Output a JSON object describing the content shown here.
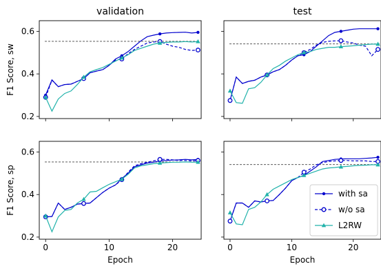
{
  "chart_data": [
    {
      "type": "line",
      "title": "validation",
      "xlabel": "",
      "ylabel": "F1 Score, sw",
      "xlim": [
        -1,
        24.5
      ],
      "ylim": [
        0.19,
        0.65
      ],
      "xticks": [
        0,
        10,
        20
      ],
      "xtick_labels": [
        "",
        "",
        ""
      ],
      "yticks": [
        0.2,
        0.4,
        0.6
      ],
      "ytick_labels": [
        "0.2",
        "0.4",
        "0.6"
      ],
      "baseline": 0.553,
      "legend": false,
      "series": [
        {
          "name": "with sa",
          "color": "#0000cd",
          "dash": "solid",
          "marker": "dot",
          "x": [
            0,
            1,
            2,
            3,
            4,
            5,
            6,
            7,
            8,
            9,
            10,
            11,
            12,
            13,
            14,
            15,
            16,
            17,
            18,
            19,
            20,
            21,
            22,
            23,
            24
          ],
          "y": [
            0.3,
            0.372,
            0.34,
            0.35,
            0.352,
            0.365,
            0.378,
            0.405,
            0.413,
            0.42,
            0.44,
            0.47,
            0.485,
            0.505,
            0.53,
            0.555,
            0.575,
            0.582,
            0.588,
            0.592,
            0.594,
            0.595,
            0.596,
            0.592,
            0.595
          ]
        },
        {
          "name": "w/o sa",
          "color": "#0000cd",
          "dash": "dashed",
          "marker": "circle",
          "x": [
            0,
            1,
            2,
            3,
            4,
            5,
            6,
            7,
            8,
            9,
            10,
            11,
            12,
            13,
            14,
            15,
            16,
            17,
            18,
            19,
            20,
            21,
            22,
            23,
            24
          ],
          "y": [
            0.29,
            0.37,
            0.34,
            0.35,
            0.352,
            0.365,
            0.378,
            0.405,
            0.413,
            0.42,
            0.44,
            0.465,
            0.47,
            0.495,
            0.515,
            0.53,
            0.545,
            0.55,
            0.552,
            0.54,
            0.53,
            0.525,
            0.515,
            0.51,
            0.512
          ]
        },
        {
          "name": "L2RW",
          "color": "#20b2aa",
          "dash": "solid",
          "marker": "triangle",
          "x": [
            0,
            1,
            2,
            3,
            4,
            5,
            6,
            7,
            8,
            9,
            10,
            11,
            12,
            13,
            14,
            15,
            16,
            17,
            18,
            19,
            20,
            21,
            22,
            23,
            24
          ],
          "y": [
            0.29,
            0.225,
            0.282,
            0.308,
            0.32,
            0.35,
            0.385,
            0.41,
            0.42,
            0.43,
            0.445,
            0.46,
            0.475,
            0.49,
            0.51,
            0.52,
            0.53,
            0.54,
            0.545,
            0.548,
            0.55,
            0.55,
            0.552,
            0.55,
            0.552
          ]
        }
      ]
    },
    {
      "type": "line",
      "title": "test",
      "xlabel": "",
      "ylabel": "",
      "xlim": [
        -1,
        24.5
      ],
      "ylim": [
        0.19,
        0.65
      ],
      "xticks": [
        0,
        10,
        20
      ],
      "xtick_labels": [
        "",
        "",
        ""
      ],
      "yticks": [
        0.2,
        0.4,
        0.6
      ],
      "ytick_labels": [
        "",
        "",
        ""
      ],
      "baseline": 0.541,
      "legend": false,
      "series": [
        {
          "name": "with sa",
          "color": "#0000cd",
          "dash": "solid",
          "marker": "dot",
          "x": [
            0,
            1,
            2,
            3,
            4,
            5,
            6,
            7,
            8,
            9,
            10,
            11,
            12,
            13,
            14,
            15,
            16,
            17,
            18,
            19,
            20,
            21,
            22,
            23,
            24
          ],
          "y": [
            0.275,
            0.385,
            0.355,
            0.365,
            0.37,
            0.385,
            0.395,
            0.41,
            0.42,
            0.44,
            0.465,
            0.485,
            0.49,
            0.505,
            0.53,
            0.555,
            0.58,
            0.595,
            0.6,
            0.605,
            0.61,
            0.612,
            0.612,
            0.612,
            0.612
          ]
        },
        {
          "name": "w/o sa",
          "color": "#0000cd",
          "dash": "dashed",
          "marker": "circle",
          "x": [
            0,
            1,
            2,
            3,
            4,
            5,
            6,
            7,
            8,
            9,
            10,
            11,
            12,
            13,
            14,
            15,
            16,
            17,
            18,
            19,
            20,
            21,
            22,
            23,
            24
          ],
          "y": [
            0.275,
            0.385,
            0.355,
            0.365,
            0.37,
            0.385,
            0.395,
            0.41,
            0.42,
            0.44,
            0.465,
            0.485,
            0.5,
            0.515,
            0.535,
            0.548,
            0.553,
            0.555,
            0.556,
            0.55,
            0.545,
            0.535,
            0.53,
            0.485,
            0.515
          ]
        },
        {
          "name": "L2RW",
          "color": "#20b2aa",
          "dash": "solid",
          "marker": "triangle",
          "x": [
            0,
            1,
            2,
            3,
            4,
            5,
            6,
            7,
            8,
            9,
            10,
            11,
            12,
            13,
            14,
            15,
            16,
            17,
            18,
            19,
            20,
            21,
            22,
            23,
            24
          ],
          "y": [
            0.32,
            0.265,
            0.262,
            0.33,
            0.335,
            0.36,
            0.395,
            0.425,
            0.44,
            0.46,
            0.475,
            0.49,
            0.5,
            0.505,
            0.515,
            0.52,
            0.525,
            0.525,
            0.528,
            0.53,
            0.532,
            0.535,
            0.538,
            0.54,
            0.54
          ]
        }
      ]
    },
    {
      "type": "line",
      "title": "",
      "xlabel": "Epoch",
      "ylabel": "F1 Score, sp",
      "xlim": [
        -1,
        24.5
      ],
      "ylim": [
        0.19,
        0.65
      ],
      "xticks": [
        0,
        10,
        20
      ],
      "xtick_labels": [
        "0",
        "10",
        "20"
      ],
      "yticks": [
        0.2,
        0.4,
        0.6
      ],
      "ytick_labels": [
        "0.2",
        "0.4",
        "0.6"
      ],
      "baseline": 0.553,
      "legend": false,
      "series": [
        {
          "name": "with sa",
          "color": "#0000cd",
          "dash": "solid",
          "marker": "dot",
          "x": [
            0,
            1,
            2,
            3,
            4,
            5,
            6,
            7,
            8,
            9,
            10,
            11,
            12,
            13,
            14,
            15,
            16,
            17,
            18,
            19,
            20,
            21,
            22,
            23,
            24
          ],
          "y": [
            0.295,
            0.297,
            0.36,
            0.33,
            0.34,
            0.355,
            0.358,
            0.36,
            0.385,
            0.41,
            0.43,
            0.445,
            0.475,
            0.5,
            0.53,
            0.54,
            0.548,
            0.552,
            0.558,
            0.56,
            0.562,
            0.563,
            0.565,
            0.563,
            0.565
          ]
        },
        {
          "name": "w/o sa",
          "color": "#0000cd",
          "dash": "dashed",
          "marker": "circle",
          "x": [
            0,
            1,
            2,
            3,
            4,
            5,
            6,
            7,
            8,
            9,
            10,
            11,
            12,
            13,
            14,
            15,
            16,
            17,
            18,
            19,
            20,
            21,
            22,
            23,
            24
          ],
          "y": [
            0.295,
            0.297,
            0.36,
            0.33,
            0.34,
            0.355,
            0.358,
            0.36,
            0.385,
            0.41,
            0.43,
            0.445,
            0.47,
            0.505,
            0.535,
            0.545,
            0.552,
            0.558,
            0.565,
            0.565,
            0.563,
            0.56,
            0.56,
            0.558,
            0.56
          ]
        },
        {
          "name": "L2RW",
          "color": "#20b2aa",
          "dash": "solid",
          "marker": "triangle",
          "x": [
            0,
            1,
            2,
            3,
            4,
            5,
            6,
            7,
            8,
            9,
            10,
            11,
            12,
            13,
            14,
            15,
            16,
            17,
            18,
            19,
            20,
            21,
            22,
            23,
            24
          ],
          "y": [
            0.3,
            0.225,
            0.295,
            0.325,
            0.33,
            0.36,
            0.378,
            0.412,
            0.415,
            0.432,
            0.448,
            0.46,
            0.472,
            0.495,
            0.525,
            0.535,
            0.54,
            0.545,
            0.548,
            0.55,
            0.552,
            0.552,
            0.553,
            0.552,
            0.552
          ]
        }
      ]
    },
    {
      "type": "line",
      "title": "",
      "xlabel": "Epoch",
      "ylabel": "",
      "xlim": [
        -1,
        24.5
      ],
      "ylim": [
        0.19,
        0.65
      ],
      "xticks": [
        0,
        10,
        20
      ],
      "xtick_labels": [
        "0",
        "10",
        "20"
      ],
      "yticks": [
        0.2,
        0.4,
        0.6
      ],
      "ytick_labels": [
        "",
        "",
        ""
      ],
      "baseline": 0.541,
      "legend": true,
      "legend_loc": "lower right",
      "series": [
        {
          "name": "with sa",
          "color": "#0000cd",
          "dash": "solid",
          "marker": "dot",
          "x": [
            0,
            1,
            2,
            3,
            4,
            5,
            6,
            7,
            8,
            9,
            10,
            11,
            12,
            13,
            14,
            15,
            16,
            17,
            18,
            19,
            20,
            21,
            22,
            23,
            24
          ],
          "y": [
            0.275,
            0.36,
            0.36,
            0.34,
            0.37,
            0.365,
            0.37,
            0.372,
            0.4,
            0.43,
            0.465,
            0.48,
            0.49,
            0.51,
            0.53,
            0.555,
            0.56,
            0.565,
            0.567,
            0.568,
            0.568,
            0.568,
            0.57,
            0.572,
            0.575
          ]
        },
        {
          "name": "w/o sa",
          "color": "#0000cd",
          "dash": "dashed",
          "marker": "circle",
          "x": [
            0,
            1,
            2,
            3,
            4,
            5,
            6,
            7,
            8,
            9,
            10,
            11,
            12,
            13,
            14,
            15,
            16,
            17,
            18,
            19,
            20,
            21,
            22,
            23,
            24
          ],
          "y": [
            0.275,
            0.36,
            0.36,
            0.34,
            0.37,
            0.365,
            0.37,
            0.372,
            0.4,
            0.43,
            0.465,
            0.48,
            0.505,
            0.52,
            0.54,
            0.55,
            0.555,
            0.558,
            0.56,
            0.56,
            0.558,
            0.558,
            0.558,
            0.555,
            0.555
          ]
        },
        {
          "name": "L2RW",
          "color": "#20b2aa",
          "dash": "solid",
          "marker": "triangle",
          "x": [
            0,
            1,
            2,
            3,
            4,
            5,
            6,
            7,
            8,
            9,
            10,
            11,
            12,
            13,
            14,
            15,
            16,
            17,
            18,
            19,
            20,
            21,
            22,
            23,
            24
          ],
          "y": [
            0.315,
            0.262,
            0.258,
            0.33,
            0.34,
            0.365,
            0.4,
            0.425,
            0.44,
            0.455,
            0.47,
            0.48,
            0.49,
            0.5,
            0.51,
            0.52,
            0.525,
            0.527,
            0.53,
            0.532,
            0.535,
            0.537,
            0.538,
            0.54,
            0.54
          ]
        }
      ]
    }
  ]
}
